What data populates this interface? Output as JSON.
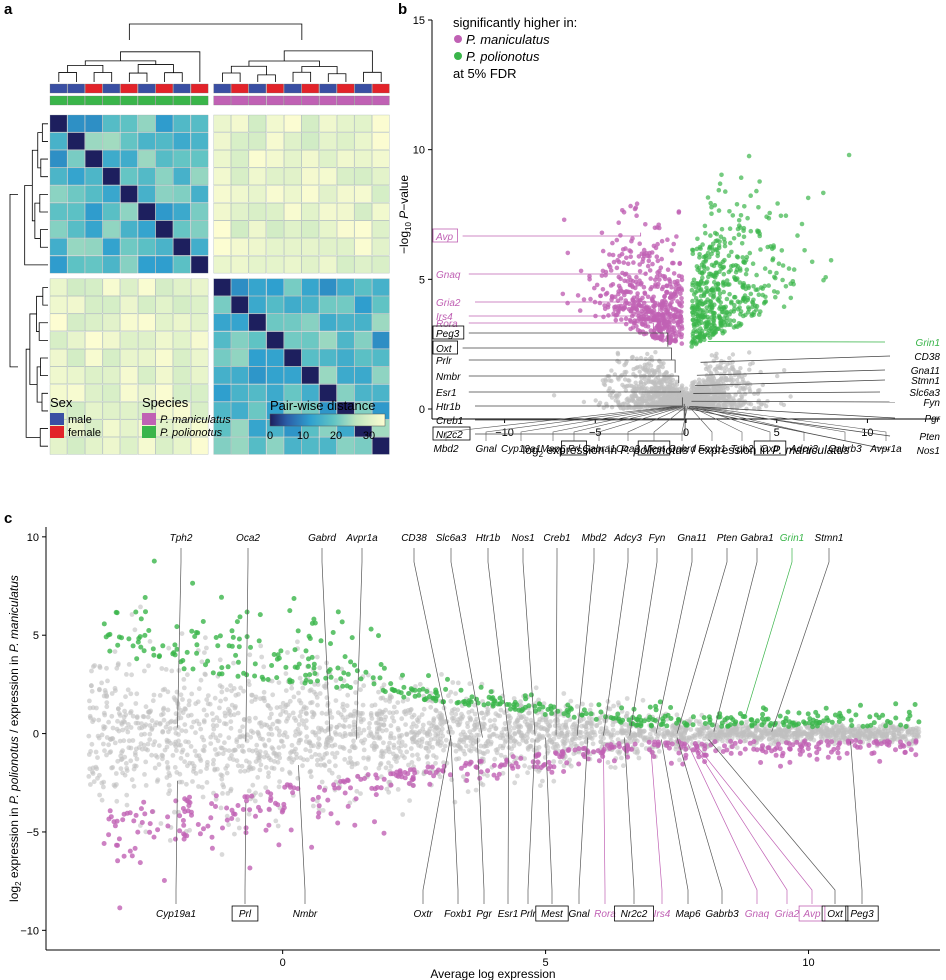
{
  "colors": {
    "male": "#3a4fa3",
    "female": "#e2232a",
    "maniculatus": "#c061b4",
    "polionotus": "#3ab54a",
    "grey": "#bfbfbf"
  },
  "panels": {
    "a": "a",
    "b": "b",
    "c": "c"
  },
  "legend_a": {
    "sex_title": "Sex",
    "male": "male",
    "female": "female",
    "species_title": "Species",
    "sp1": "P. maniculatus",
    "sp2": "P. polionotus",
    "dist_title": "Pair-wise distance",
    "ticks": [
      "0",
      "10",
      "20",
      "30"
    ]
  },
  "legend_b": {
    "line1": "significantly higher in:",
    "sp1": "P. maniculatus",
    "sp2": "P. polionotus",
    "line4": "at 5% FDR"
  },
  "chart_data": [
    {
      "id": "a",
      "type": "heatmap",
      "title": "Pair-wise distance",
      "groups": [
        "P. maniculatus",
        "P. polionotus"
      ],
      "top_sex_row": [
        "male",
        "male",
        "female",
        "male",
        "female",
        "male",
        "female",
        "male",
        "female",
        "male",
        "female",
        "male",
        "female",
        "male",
        "female",
        "male",
        "female",
        "male",
        "female"
      ],
      "top_species_row": [
        "P. polionotus",
        "P. polionotus",
        "P. polionotus",
        "P. polionotus",
        "P. polionotus",
        "P. polionotus",
        "P. polionotus",
        "P. polionotus",
        "P. polionotus",
        "P. maniculatus",
        "P. maniculatus",
        "P. maniculatus",
        "P. maniculatus",
        "P. maniculatus",
        "P. maniculatus",
        "P. maniculatus",
        "P. maniculatus",
        "P. maniculatus",
        "P. maniculatus"
      ],
      "colorbar": {
        "min": 0,
        "max": 35,
        "ticks": [
          0,
          10,
          20,
          30
        ]
      }
    },
    {
      "id": "b",
      "type": "scatter",
      "xlabel": "log2 expression in P. polionotus / expression in P. maniculatus",
      "ylabel": "−log10 P−value",
      "xlim": [
        -14,
        14
      ],
      "ylim": [
        0,
        15
      ],
      "x_ticks": [
        -10,
        -5,
        0,
        5,
        10
      ],
      "y_ticks": [
        0,
        5,
        10,
        15
      ],
      "genes_left": [
        {
          "name": "Avp",
          "y": 6.8,
          "x": -2.5,
          "color": "pink",
          "boxed": true
        },
        {
          "name": "Gnaq",
          "y": 5.3,
          "x": -2.2,
          "color": "pink",
          "boxed": false
        },
        {
          "name": "Gria2",
          "y": 3.5,
          "x": -1.5,
          "color": "pink",
          "boxed": false
        },
        {
          "name": "Irs4",
          "y": 3.0,
          "x": -1.2,
          "color": "pink",
          "boxed": false
        },
        {
          "name": "Rora",
          "y": 2.7,
          "x": -1.8,
          "color": "pink",
          "boxed": false
        },
        {
          "name": "Peg3",
          "y": 2.4,
          "x": -1.0,
          "color": "black",
          "boxed": true
        },
        {
          "name": "Oxt",
          "y": 1.9,
          "x": -0.8,
          "color": "black",
          "boxed": true
        },
        {
          "name": "Prlr",
          "y": 1.4,
          "x": -0.6,
          "color": "black",
          "boxed": false
        },
        {
          "name": "Nmbr",
          "y": 1.0,
          "x": -0.4,
          "color": "black",
          "boxed": false
        },
        {
          "name": "Esr1",
          "y": 0.7,
          "x": -0.3,
          "color": "black",
          "boxed": false
        },
        {
          "name": "Htr1b",
          "y": 0.45,
          "x": -0.2,
          "color": "black",
          "boxed": false
        },
        {
          "name": "Creb1",
          "y": 0.2,
          "x": -0.1,
          "color": "black",
          "boxed": false
        },
        {
          "name": "Nr2c2",
          "y": 0.05,
          "x": -0.05,
          "color": "black",
          "boxed": true
        }
      ],
      "genes_right": [
        {
          "name": "Grin1",
          "y": 2.6,
          "x": 1.2,
          "color": "green"
        },
        {
          "name": "CD38",
          "y": 1.8,
          "x": 0.8
        },
        {
          "name": "Gna11",
          "y": 1.3,
          "x": 0.6
        },
        {
          "name": "Stmn1",
          "y": 0.9,
          "x": 0.5
        },
        {
          "name": "Slc6a3",
          "y": 0.6,
          "x": 0.4
        },
        {
          "name": "Fyn",
          "y": 0.3,
          "x": 0.3
        },
        {
          "name": "Pgr",
          "y": 0.1,
          "x": 0.2
        },
        {
          "name": "Pten",
          "y": 0.05,
          "x": 0.15
        },
        {
          "name": "Nos1",
          "y": 0.02,
          "x": 0.1
        }
      ],
      "genes_bottom": [
        "Mbd2",
        "Gnal",
        "Cyp19a1",
        "Map6",
        "Prl",
        "Gabra1",
        "Oca2",
        "Mest",
        "Gabrd",
        "Foxb1",
        "Tph2",
        "Oxtr",
        "Adcy3",
        "Gabrb3",
        "Avpr1a"
      ],
      "genes_bottom_boxed": [
        "Prl",
        "Mest",
        "Oxtr"
      ]
    },
    {
      "id": "c",
      "type": "scatter",
      "xlabel": "Average log expression",
      "ylabel": "log2 expression in P. polionotus / expression in P. maniculatus",
      "xlim": [
        -4.5,
        12.5
      ],
      "ylim": [
        -11,
        10.5
      ],
      "x_ticks": [
        0,
        5,
        10
      ],
      "y_ticks": [
        -10,
        -5,
        0,
        5,
        10
      ],
      "genes_top": [
        {
          "name": "Tph2",
          "x": -2.0,
          "y": 0.3
        },
        {
          "name": "Oca2",
          "x": -0.7,
          "y": -0.4
        },
        {
          "name": "Gabrd",
          "x": 0.9,
          "y": -0.1
        },
        {
          "name": "Avpr1a",
          "x": 1.4,
          "y": -0.3
        },
        {
          "name": "CD38",
          "x": 3.2,
          "y": -0.3
        },
        {
          "name": "Slc6a3",
          "x": 3.8,
          "y": -0.2
        },
        {
          "name": "Htr1b",
          "x": 4.3,
          "y": -0.2
        },
        {
          "name": "Nos1",
          "x": 4.8,
          "y": -0.1
        },
        {
          "name": "Creb1",
          "x": 5.2,
          "y": -0.1
        },
        {
          "name": "Mbd2",
          "x": 5.6,
          "y": -0.1
        },
        {
          "name": "Adcy3",
          "x": 6.1,
          "y": -0.1
        },
        {
          "name": "Fyn",
          "x": 6.6,
          "y": -0.1
        },
        {
          "name": "Gna11",
          "x": 7.1,
          "y": 0.0
        },
        {
          "name": "Pten",
          "x": 7.5,
          "y": 0.0
        },
        {
          "name": "Gabra1",
          "x": 8.2,
          "y": 0.1
        },
        {
          "name": "Grin1",
          "x": 8.8,
          "y": 0.9,
          "color": "green"
        },
        {
          "name": "Stmn1",
          "x": 9.3,
          "y": 0.1
        }
      ],
      "genes_bottom": [
        {
          "name": "Cyp19a1",
          "x": -2.0,
          "y": -2.4
        },
        {
          "name": "Prl",
          "x": -0.7,
          "y": -3.5,
          "boxed": true
        },
        {
          "name": "Nmbr",
          "x": 0.3,
          "y": -1.6
        },
        {
          "name": "Oxtr",
          "x": 3.2,
          "y": -0.1
        },
        {
          "name": "Foxb1",
          "x": 3.2,
          "y": -0.3
        },
        {
          "name": "Pgr",
          "x": 3.7,
          "y": -0.2
        },
        {
          "name": "Esr1",
          "x": 4.3,
          "y": -0.2
        },
        {
          "name": "Prlr",
          "x": 4.8,
          "y": -0.3
        },
        {
          "name": "Mest",
          "x": 5.0,
          "y": -0.2,
          "boxed": true
        },
        {
          "name": "Gnal",
          "x": 5.8,
          "y": -0.2
        },
        {
          "name": "Rora",
          "x": 6.1,
          "y": -0.6,
          "color": "pink"
        },
        {
          "name": "Nr2c2",
          "x": 6.5,
          "y": -0.2,
          "boxed": true
        },
        {
          "name": "Irs4",
          "x": 7.0,
          "y": -0.7,
          "color": "pink"
        },
        {
          "name": "Map6",
          "x": 7.2,
          "y": -0.3
        },
        {
          "name": "Gabrb3",
          "x": 7.5,
          "y": -0.2
        },
        {
          "name": "Gnaq",
          "x": 7.7,
          "y": -0.5,
          "color": "pink"
        },
        {
          "name": "Gria2",
          "x": 7.8,
          "y": -0.5,
          "color": "pink"
        },
        {
          "name": "Avp",
          "x": 7.9,
          "y": -0.7,
          "color": "pink",
          "boxed": true
        },
        {
          "name": "Oxt",
          "x": 8.1,
          "y": -0.3,
          "boxed": true
        },
        {
          "name": "Peg3",
          "x": 10.8,
          "y": -0.4,
          "boxed": true
        }
      ]
    }
  ]
}
